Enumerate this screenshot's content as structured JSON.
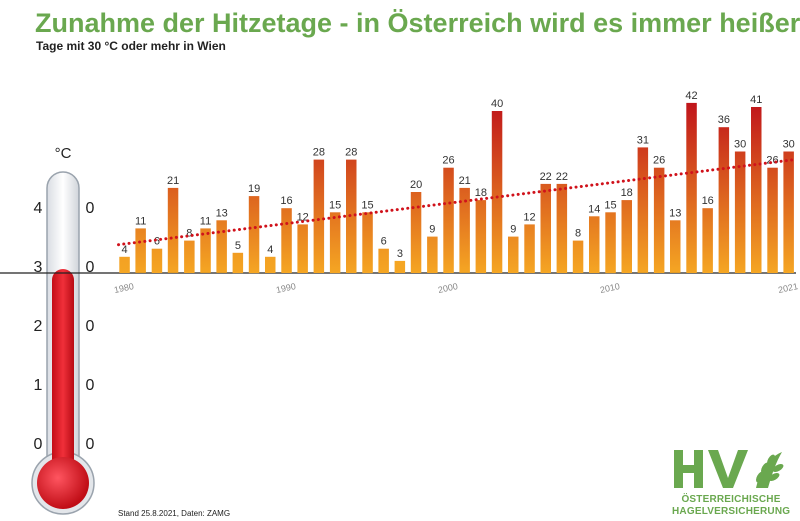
{
  "header": {
    "title": "Zunahme der Hitzetage - in Österreich wird es immer heißer!",
    "subtitle": "Tage mit 30 °C oder mehr in Wien"
  },
  "footer": {
    "source": "Stand 25.8.2021, Daten: ZAMG"
  },
  "logo": {
    "line1": "ÖSTERREICHISCHE",
    "line2": "HAGELVERSICHERUNG",
    "mark": "HV"
  },
  "thermometer": {
    "unit": "°C",
    "scale_labels": [
      {
        "left": "4",
        "right": "0"
      },
      {
        "left": "3",
        "right": "0"
      },
      {
        "left": "2",
        "right": "0"
      },
      {
        "left": "1",
        "right": "0"
      },
      {
        "left": "0",
        "right": "0"
      }
    ]
  },
  "colors": {
    "title": "#6aa84f",
    "bar_low": "#f5a623",
    "bar_high": "#c0151b",
    "trend": "#d0121b"
  },
  "chart_data": {
    "type": "bar",
    "title": "Zunahme der Hitzetage - in Österreich wird es immer heißer!",
    "subtitle": "Tage mit 30 °C oder mehr in Wien",
    "x_tick_labels": [
      "1980",
      "1990",
      "2000",
      "2010",
      "2021"
    ],
    "categories": [
      1980,
      1981,
      1982,
      1983,
      1984,
      1985,
      1986,
      1987,
      1988,
      1989,
      1990,
      1991,
      1992,
      1993,
      1994,
      1995,
      1996,
      1997,
      1998,
      1999,
      2000,
      2001,
      2002,
      2003,
      2004,
      2005,
      2006,
      2007,
      2008,
      2009,
      2010,
      2011,
      2012,
      2013,
      2014,
      2015,
      2016,
      2017,
      2018,
      2019,
      2020,
      2021
    ],
    "values": [
      4,
      11,
      6,
      21,
      8,
      11,
      13,
      5,
      19,
      4,
      16,
      12,
      28,
      15,
      28,
      15,
      6,
      3,
      20,
      9,
      26,
      21,
      18,
      40,
      9,
      12,
      22,
      22,
      8,
      14,
      15,
      18,
      31,
      26,
      13,
      42,
      16,
      36,
      30,
      41,
      26,
      30
    ],
    "trend_line": {
      "style": "dotted",
      "start_value": 7,
      "end_value": 28
    },
    "ylim": [
      0,
      45
    ],
    "grid": false,
    "legend": "none"
  }
}
